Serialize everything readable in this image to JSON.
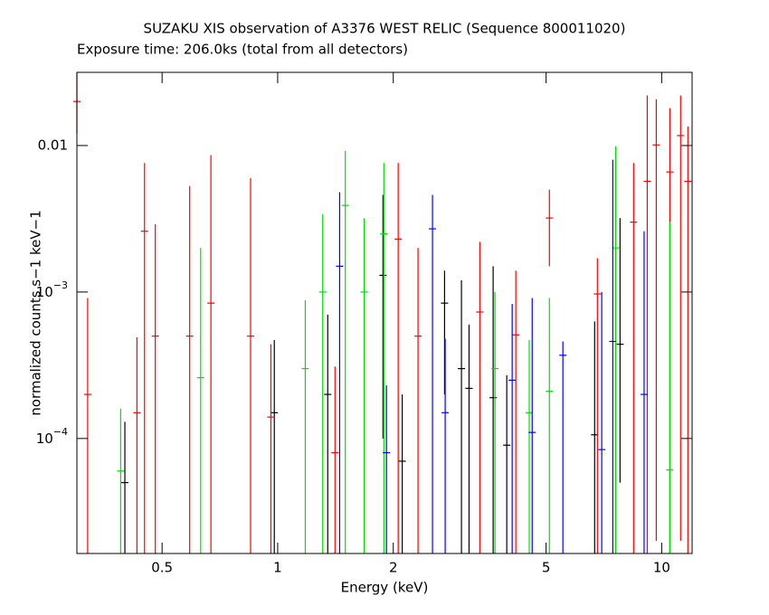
{
  "chart_data": {
    "type": "scatter",
    "title": "SUZAKU XIS observation of A3376 WEST RELIC (Sequence 800011020)",
    "subtitle": "Exposure time: 206.0ks (total from all detectors)",
    "x_label": "Energy (keV)",
    "y_label": "normalized counts s−1 keV−1",
    "xscale": "log",
    "yscale": "log",
    "xlim": [
      0.3,
      12
    ],
    "ylim": [
      1.64e-05,
      0.0316
    ],
    "xticks": [
      0.5,
      1,
      2,
      5,
      10
    ],
    "yticks": [
      0.01,
      {
        "value": 0.001,
        "label": "10−3"
      },
      {
        "value": 0.0001,
        "label": "10−4"
      }
    ],
    "series": [
      {
        "color": "#000000",
        "x": [
          0.4,
          0.98,
          1.35,
          1.88,
          2.11,
          2.72,
          3.01,
          3.15,
          3.64,
          3.95,
          6.69,
          7.79
        ],
        "values": [
          5e-05,
          0.00015,
          0.0002,
          0.0013,
          7e-05,
          0.00084,
          0.0003,
          0.00022,
          0.00019,
          9e-05,
          0.000106,
          0.00044
        ],
        "lower": [
          1e-05,
          1e-05,
          1e-05,
          0.0001,
          1e-05,
          0.0002,
          1e-05,
          1e-05,
          1e-05,
          1e-05,
          1e-05,
          5e-05
        ],
        "upper": [
          0.00013,
          0.00047,
          0.0007,
          0.0046,
          0.0002,
          0.0014,
          0.0012,
          0.0006,
          0.0015,
          0.00027,
          0.00063,
          0.0032
        ]
      },
      {
        "color": "#ff0000",
        "x": [
          0.3,
          0.32,
          0.43,
          0.45,
          0.48,
          0.59,
          0.67,
          0.85,
          0.96,
          1.41,
          2.06,
          2.32,
          3.36,
          4.17,
          5.1,
          6.8,
          8.45,
          9.17,
          9.68,
          10.5,
          11.2,
          11.7
        ],
        "values": [
          0.02,
          0.0002,
          0.00015,
          0.0026,
          0.0005,
          0.0005,
          0.00084,
          0.0005,
          0.00014,
          8e-05,
          0.0023,
          0.0005,
          0.00073,
          0.00051,
          0.0032,
          0.00097,
          0.003,
          0.0057,
          0.0101,
          0.0066,
          0.0117,
          0.0057
        ],
        "lower": [
          0.012,
          1e-05,
          1e-05,
          1e-05,
          1e-05,
          1e-05,
          1e-05,
          1e-05,
          1e-05,
          1e-05,
          1e-05,
          1e-05,
          1e-05,
          1e-05,
          0.0015,
          1e-05,
          1e-05,
          1e-05,
          2e-05,
          1e-05,
          2e-05,
          1e-05
        ],
        "upper": [
          0.0316,
          0.00091,
          0.00049,
          0.0076,
          0.0029,
          0.0053,
          0.0086,
          0.006,
          0.00044,
          0.00031,
          0.0076,
          0.002,
          0.0022,
          0.0014,
          0.005,
          0.0017,
          0.0076,
          0.022,
          0.0207,
          0.018,
          0.022,
          0.0135
        ]
      },
      {
        "color": "#00e000",
        "x": [
          0.39,
          0.63,
          1.18,
          1.31,
          1.5,
          1.68,
          1.89,
          3.68,
          4.52,
          5.1,
          7.59,
          10.5
        ],
        "values": [
          6e-05,
          0.00026,
          0.0003,
          0.001,
          0.0039,
          0.001,
          0.0025,
          0.0003,
          0.00015,
          0.00021,
          0.002,
          6.1e-05
        ],
        "lower": [
          1e-05,
          1e-05,
          1e-05,
          1e-05,
          1e-05,
          1e-05,
          1e-05,
          1e-05,
          1e-05,
          1e-05,
          1e-05,
          1e-05
        ],
        "upper": [
          0.00016,
          0.002,
          0.00088,
          0.0034,
          0.0092,
          0.0032,
          0.0076,
          0.001,
          0.00047,
          0.00091,
          0.0099,
          0.003
        ]
      },
      {
        "color": "#0000ff",
        "x": [
          1.45,
          1.92,
          2.53,
          2.73,
          4.08,
          4.6,
          5.53,
          6.98,
          7.46,
          9.0
        ],
        "values": [
          0.0015,
          8e-05,
          0.0027,
          0.00015,
          0.00025,
          0.00011,
          0.00037,
          8.4e-05,
          0.00046,
          0.0002
        ],
        "lower": [
          1e-05,
          1e-05,
          1e-05,
          1e-05,
          1e-05,
          1e-05,
          1e-05,
          1e-05,
          1e-05,
          1e-05
        ],
        "upper": [
          0.0048,
          0.00023,
          0.0046,
          0.00048,
          0.00083,
          0.00091,
          0.00046,
          0.001,
          0.008,
          0.0026
        ]
      }
    ]
  }
}
